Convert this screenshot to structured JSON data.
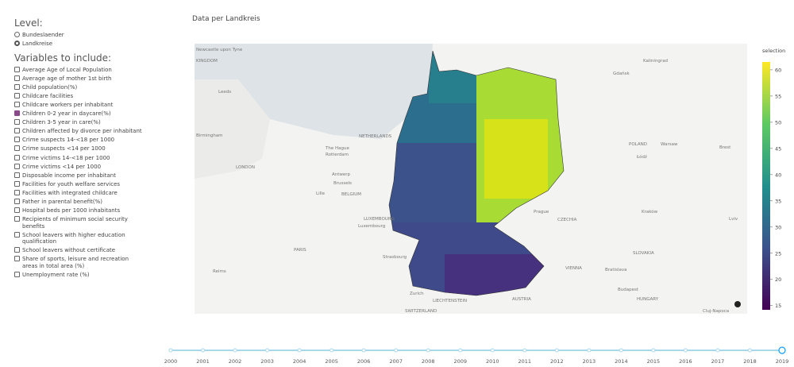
{
  "sidebar": {
    "level_title": "Level:",
    "level_options": [
      {
        "label": "Bundeslaender",
        "selected": false
      },
      {
        "label": "Landkreise",
        "selected": true
      }
    ],
    "variables_title": "Variables to include:",
    "variables": [
      {
        "label": "Average Age of Local Population",
        "checked": false
      },
      {
        "label": "Average age of mother 1st birth",
        "checked": false
      },
      {
        "label": "Child population(%)",
        "checked": false
      },
      {
        "label": "Childcare facilities",
        "checked": false
      },
      {
        "label": "Childcare workers per inhabitant",
        "checked": false
      },
      {
        "label": "Children 0-2 year in daycare(%)",
        "checked": true
      },
      {
        "label": "Children 3-5 year in care(%)",
        "checked": false
      },
      {
        "label": "Children affected by divorce per inhabitant",
        "checked": false
      },
      {
        "label": "Crime suspects 14-<18 per 1000",
        "checked": false
      },
      {
        "label": "Crime suspects <14 per 1000",
        "checked": false
      },
      {
        "label": "Crime victims 14-<18 per 1000",
        "checked": false
      },
      {
        "label": "Crime victims <14 per 1000",
        "checked": false
      },
      {
        "label": "Disposable income per inhabitant",
        "checked": false
      },
      {
        "label": "Facilities for youth welfare services",
        "checked": false
      },
      {
        "label": "Facilities with integrated childcare",
        "checked": false
      },
      {
        "label": "Father in parental benefit(%)",
        "checked": false
      },
      {
        "label": "Hospital beds per 1000 inhabitants",
        "checked": false
      },
      {
        "label": "Recipients of minimum social security benefits",
        "checked": false
      },
      {
        "label": "School leavers with higher education qualification",
        "checked": false
      },
      {
        "label": "School leavers without certificate",
        "checked": false
      },
      {
        "label": "Share of sports, leisure and recreation areas in total area (%)",
        "checked": false
      },
      {
        "label": "Unemployment rate (%)",
        "checked": false
      }
    ]
  },
  "map": {
    "title": "Data per Landkreis",
    "labels": [
      "Newcastle upon Tyne",
      "KINGDOM",
      "Leeds",
      "Birmingham",
      "LONDON",
      "NETHERLANDS",
      "The Hague",
      "Rotterdam",
      "Antwerp",
      "BELGIUM",
      "Brussels",
      "Lille",
      "LUXEMBOURG",
      "Luxembourg",
      "PARIS",
      "Reims",
      "Strasbourg",
      "Zurich",
      "LIECHTENSTEIN",
      "SWITZERLAND",
      "AUSTRIA",
      "Prague",
      "CZECHIA",
      "POLAND",
      "Warsaw",
      "Łódź",
      "Kraków",
      "SLOVAKIA",
      "VIENNA",
      "Bratislava",
      "Budapest",
      "HUNGARY",
      "Kaliningrad",
      "Gdańsk",
      "Brest",
      "Lviv",
      "Cluj-Napoca"
    ]
  },
  "colorbar": {
    "title": "selection",
    "range": [
      14.2,
      61.5
    ],
    "ticks": [
      15,
      20,
      25,
      30,
      35,
      40,
      45,
      50,
      55,
      60
    ]
  },
  "slider": {
    "years": [
      2000,
      2001,
      2002,
      2003,
      2004,
      2005,
      2006,
      2007,
      2008,
      2009,
      2010,
      2011,
      2012,
      2013,
      2014,
      2015,
      2016,
      2017,
      2018,
      2019
    ],
    "selected": 2019
  }
}
